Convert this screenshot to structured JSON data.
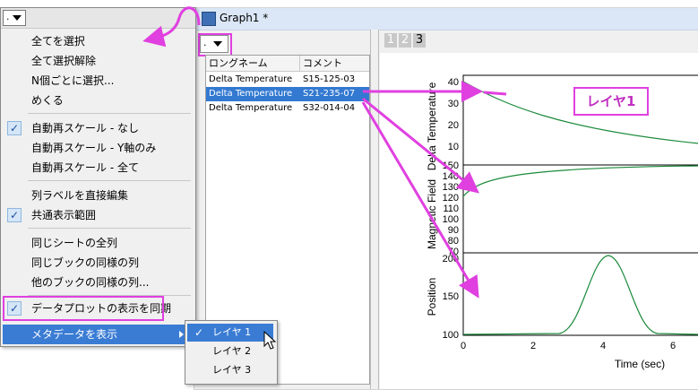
{
  "window": {
    "title": "Graph1 *",
    "dropdown_text": "."
  },
  "layer_tabs": [
    "1",
    "2",
    "3"
  ],
  "list": {
    "headers": [
      "ロングネーム",
      "コメント"
    ],
    "rows": [
      {
        "long_name": "Delta Temperature",
        "comment": "S15-125-03",
        "selected": false
      },
      {
        "long_name": "Delta Temperature",
        "comment": "S21-235-07",
        "selected": true
      },
      {
        "long_name": "Delta Temperature",
        "comment": "S32-014-04",
        "selected": false
      }
    ]
  },
  "menu": {
    "dropdown_text": ".",
    "items": {
      "select_all": "全てを選択",
      "deselect_all": "全て選択解除",
      "select_every_n": "N個ごとに選択...",
      "flip": "めくる",
      "rescale_none": "自動再スケール - なし",
      "rescale_y": "自動再スケール - Y軸のみ",
      "rescale_all": "自動再スケール - 全て",
      "edit_labels": "列ラベルを直接編集",
      "common_range": "共通表示範囲",
      "same_sheet_all": "同じシートの全列",
      "same_book_cols": "同じブックの同様の列",
      "other_book_cols": "他のブックの同様の列...",
      "sync_plot": "データプロットの表示を同期",
      "show_metadata": "メタデータを表示"
    },
    "checked": [
      "rescale_none",
      "common_range",
      "sync_plot"
    ]
  },
  "submenu": [
    "レイヤ 1",
    "レイヤ 2",
    "レイヤ 3"
  ],
  "callout": "レイヤ1",
  "plot": {
    "top": {
      "ylabel": "Delta Temperature",
      "yticks": [
        "40",
        "30",
        "20",
        "10"
      ]
    },
    "middle": {
      "ylabel": "Magnetic Field",
      "yticks": [
        "150",
        "140",
        "130",
        "120",
        "110",
        "100",
        "90",
        "80",
        "70"
      ]
    },
    "bottom": {
      "ylabel": "Position",
      "yticks": [
        "200",
        "150",
        "100"
      ]
    },
    "xlabel": "Time (sec)",
    "xticks": [
      "0",
      "2",
      "4",
      "6"
    ]
  },
  "colors": {
    "accent": "#e040e0",
    "selection": "#3379d1",
    "curve": "#1a8a3a"
  }
}
